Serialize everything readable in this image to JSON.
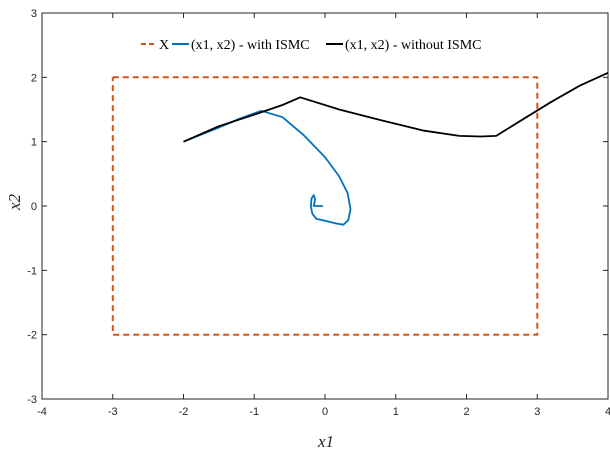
{
  "chart_data": {
    "type": "line",
    "xlabel": "x1",
    "ylabel": "x2",
    "xlim": [
      -4,
      4
    ],
    "ylim": [
      -3,
      3
    ],
    "xticks": [
      "-4",
      "-3",
      "-2",
      "-1",
      "0",
      "1",
      "2",
      "3",
      "4"
    ],
    "yticks": [
      "-3",
      "-2",
      "-1",
      "0",
      "1",
      "2",
      "3"
    ],
    "grid": false,
    "legend_position": "top",
    "legend": [
      "X",
      "(x1, x2) - with ISMC",
      "(x1, x2) - without ISMC"
    ],
    "series": [
      {
        "name": "X",
        "style": "dashed",
        "color": "#D95319",
        "x": [
          -3,
          3,
          3,
          -3,
          -3
        ],
        "y": [
          2,
          2,
          -2,
          -2,
          2
        ]
      },
      {
        "name": "(x1, x2) - with ISMC",
        "style": "solid",
        "color": "#0072BD",
        "x": [
          -2.0,
          -1.5,
          -1.2,
          -0.9,
          -0.6,
          -0.3,
          0.0,
          0.2,
          0.32,
          0.36,
          0.33,
          0.26,
          0.15,
          0.0,
          -0.12,
          -0.18,
          -0.2,
          -0.19,
          -0.16,
          -0.14,
          -0.16,
          -0.15,
          -0.03
        ],
        "y": [
          1.0,
          1.22,
          1.36,
          1.48,
          1.38,
          1.1,
          0.76,
          0.46,
          0.2,
          -0.05,
          -0.22,
          -0.29,
          -0.27,
          -0.23,
          -0.2,
          -0.12,
          0.0,
          0.12,
          0.17,
          0.1,
          0.0,
          0.0,
          0.0
        ]
      },
      {
        "name": "(x1, x2) - without ISMC",
        "style": "solid",
        "color": "#000000",
        "x": [
          -2.0,
          -1.5,
          -1.0,
          -0.6,
          -0.35,
          0.2,
          0.8,
          1.4,
          1.9,
          2.2,
          2.42,
          2.8,
          3.2,
          3.6,
          4.0
        ],
        "y": [
          1.0,
          1.24,
          1.42,
          1.57,
          1.69,
          1.5,
          1.33,
          1.17,
          1.09,
          1.08,
          1.09,
          1.35,
          1.62,
          1.87,
          2.07
        ]
      }
    ]
  }
}
